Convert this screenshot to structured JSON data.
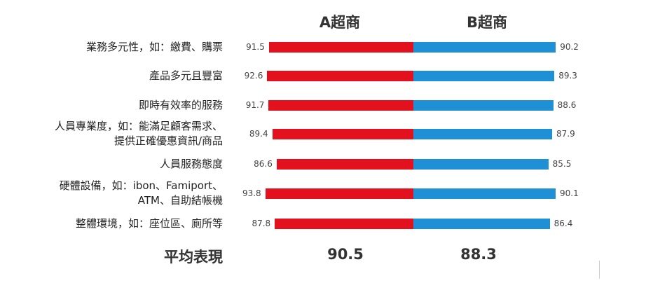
{
  "chart_data": {
    "type": "bar",
    "orientation": "diverging-horizontal",
    "series": [
      {
        "name": "A超商",
        "color": "#e3101e",
        "values": [
          91.5,
          92.6,
          91.7,
          89.4,
          86.6,
          93.8,
          87.8
        ]
      },
      {
        "name": "B超商",
        "color": "#1f8fd6",
        "values": [
          90.2,
          89.3,
          88.6,
          87.9,
          85.5,
          90.1,
          86.4
        ]
      }
    ],
    "categories": [
      [
        "業務多元性，如：繳費、購票"
      ],
      [
        "產品多元且豐富"
      ],
      [
        "即時有效率的服務"
      ],
      [
        "人員專業度，如：能滿足顧客需求、",
        "提供正確優惠資訊/商品"
      ],
      [
        "人員服務態度"
      ],
      [
        "硬體設備，如：ibon、Famiport、",
        "ATM、自助結帳機"
      ],
      [
        "整體環境，如：座位區、廁所等"
      ]
    ],
    "average": {
      "label": "平均表現",
      "values": [
        "90.5",
        "88.3"
      ]
    },
    "grid": false,
    "legend": "column headers above bars"
  }
}
